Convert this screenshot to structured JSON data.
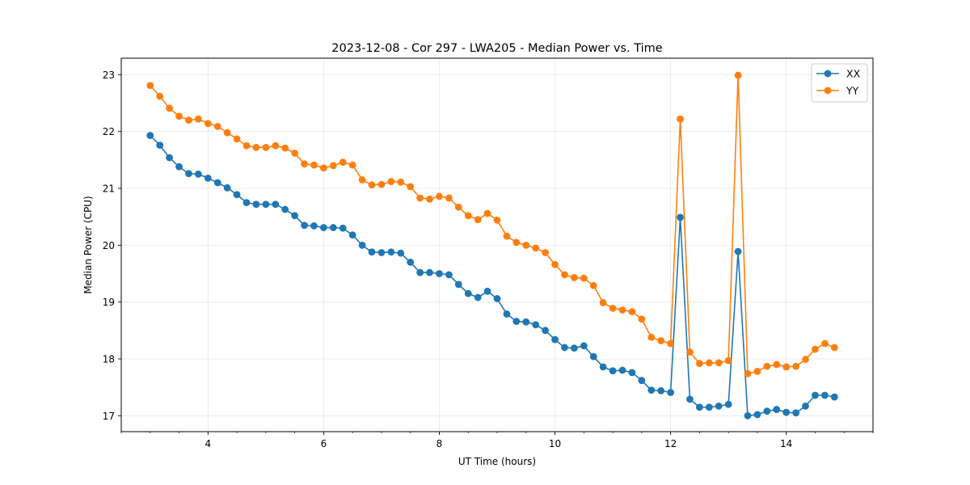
{
  "chart_data": {
    "type": "line",
    "title": "2023-12-08 - Cor 297 - LWA205 - Median Power vs. Time",
    "xlabel": "UT Time (hours)",
    "ylabel": "Median Power (CPU)",
    "xlim": [
      2.5,
      15.5
    ],
    "ylim": [
      16.72,
      23.29
    ],
    "x_ticks": [
      4,
      6,
      8,
      10,
      12,
      14
    ],
    "x_tick_labels": [
      "4",
      "6",
      "8",
      "10",
      "12",
      "14"
    ],
    "y_ticks": [
      17,
      18,
      19,
      20,
      21,
      22,
      23
    ],
    "y_tick_labels": [
      "17",
      "18",
      "19",
      "20",
      "21",
      "22",
      "23"
    ],
    "grid": true,
    "legend_position": "top-right",
    "x": [
      3.0,
      3.167,
      3.333,
      3.5,
      3.667,
      3.833,
      4.0,
      4.167,
      4.333,
      4.5,
      4.667,
      4.833,
      5.0,
      5.167,
      5.333,
      5.5,
      5.667,
      5.833,
      6.0,
      6.167,
      6.333,
      6.5,
      6.667,
      6.833,
      7.0,
      7.167,
      7.333,
      7.5,
      7.667,
      7.833,
      8.0,
      8.167,
      8.333,
      8.5,
      8.667,
      8.833,
      9.0,
      9.167,
      9.333,
      9.5,
      9.667,
      9.833,
      10.0,
      10.167,
      10.333,
      10.5,
      10.667,
      10.833,
      11.0,
      11.167,
      11.333,
      11.5,
      11.667,
      11.833,
      12.0,
      12.167,
      12.333,
      12.5,
      12.667,
      12.833,
      13.0,
      13.167,
      13.333,
      13.5,
      13.667,
      13.833,
      14.0,
      14.167,
      14.333,
      14.5,
      14.667,
      14.833
    ],
    "series": [
      {
        "name": "XX",
        "color": "#1f77b4",
        "values": [
          21.93,
          21.76,
          21.54,
          21.38,
          21.26,
          21.25,
          21.18,
          21.1,
          21.01,
          20.89,
          20.75,
          20.72,
          20.72,
          20.72,
          20.63,
          20.52,
          20.35,
          20.34,
          20.31,
          20.31,
          20.3,
          20.18,
          20.0,
          19.88,
          19.87,
          19.88,
          19.86,
          19.7,
          19.52,
          19.52,
          19.5,
          19.48,
          19.31,
          19.15,
          19.08,
          19.19,
          19.06,
          18.79,
          18.66,
          18.65,
          18.6,
          18.5,
          18.34,
          18.2,
          18.19,
          18.23,
          18.04,
          17.86,
          17.79,
          17.8,
          17.76,
          17.62,
          17.45,
          17.44,
          17.41,
          20.49,
          17.29,
          17.15,
          17.15,
          17.17,
          17.2,
          19.89,
          17.0,
          17.02,
          17.08,
          17.11,
          17.06,
          17.05,
          17.17,
          17.36,
          17.36,
          17.33
        ]
      },
      {
        "name": "YY",
        "color": "#ff7f0e",
        "values": [
          22.81,
          22.62,
          22.41,
          22.27,
          22.2,
          22.22,
          22.14,
          22.09,
          21.98,
          21.87,
          21.75,
          21.72,
          21.72,
          21.75,
          21.71,
          21.62,
          21.43,
          21.41,
          21.36,
          21.4,
          21.46,
          21.41,
          21.15,
          21.06,
          21.07,
          21.12,
          21.11,
          21.03,
          20.83,
          20.81,
          20.86,
          20.83,
          20.67,
          20.52,
          20.45,
          20.56,
          20.44,
          20.16,
          20.05,
          20.0,
          19.95,
          19.87,
          19.66,
          19.48,
          19.43,
          19.42,
          19.29,
          18.99,
          18.89,
          18.86,
          18.83,
          18.7,
          18.38,
          18.32,
          18.27,
          22.22,
          18.12,
          17.92,
          17.93,
          17.93,
          17.97,
          22.99,
          17.74,
          17.78,
          17.87,
          17.9,
          17.86,
          17.87,
          17.99,
          18.17,
          18.27,
          18.2
        ]
      }
    ]
  }
}
